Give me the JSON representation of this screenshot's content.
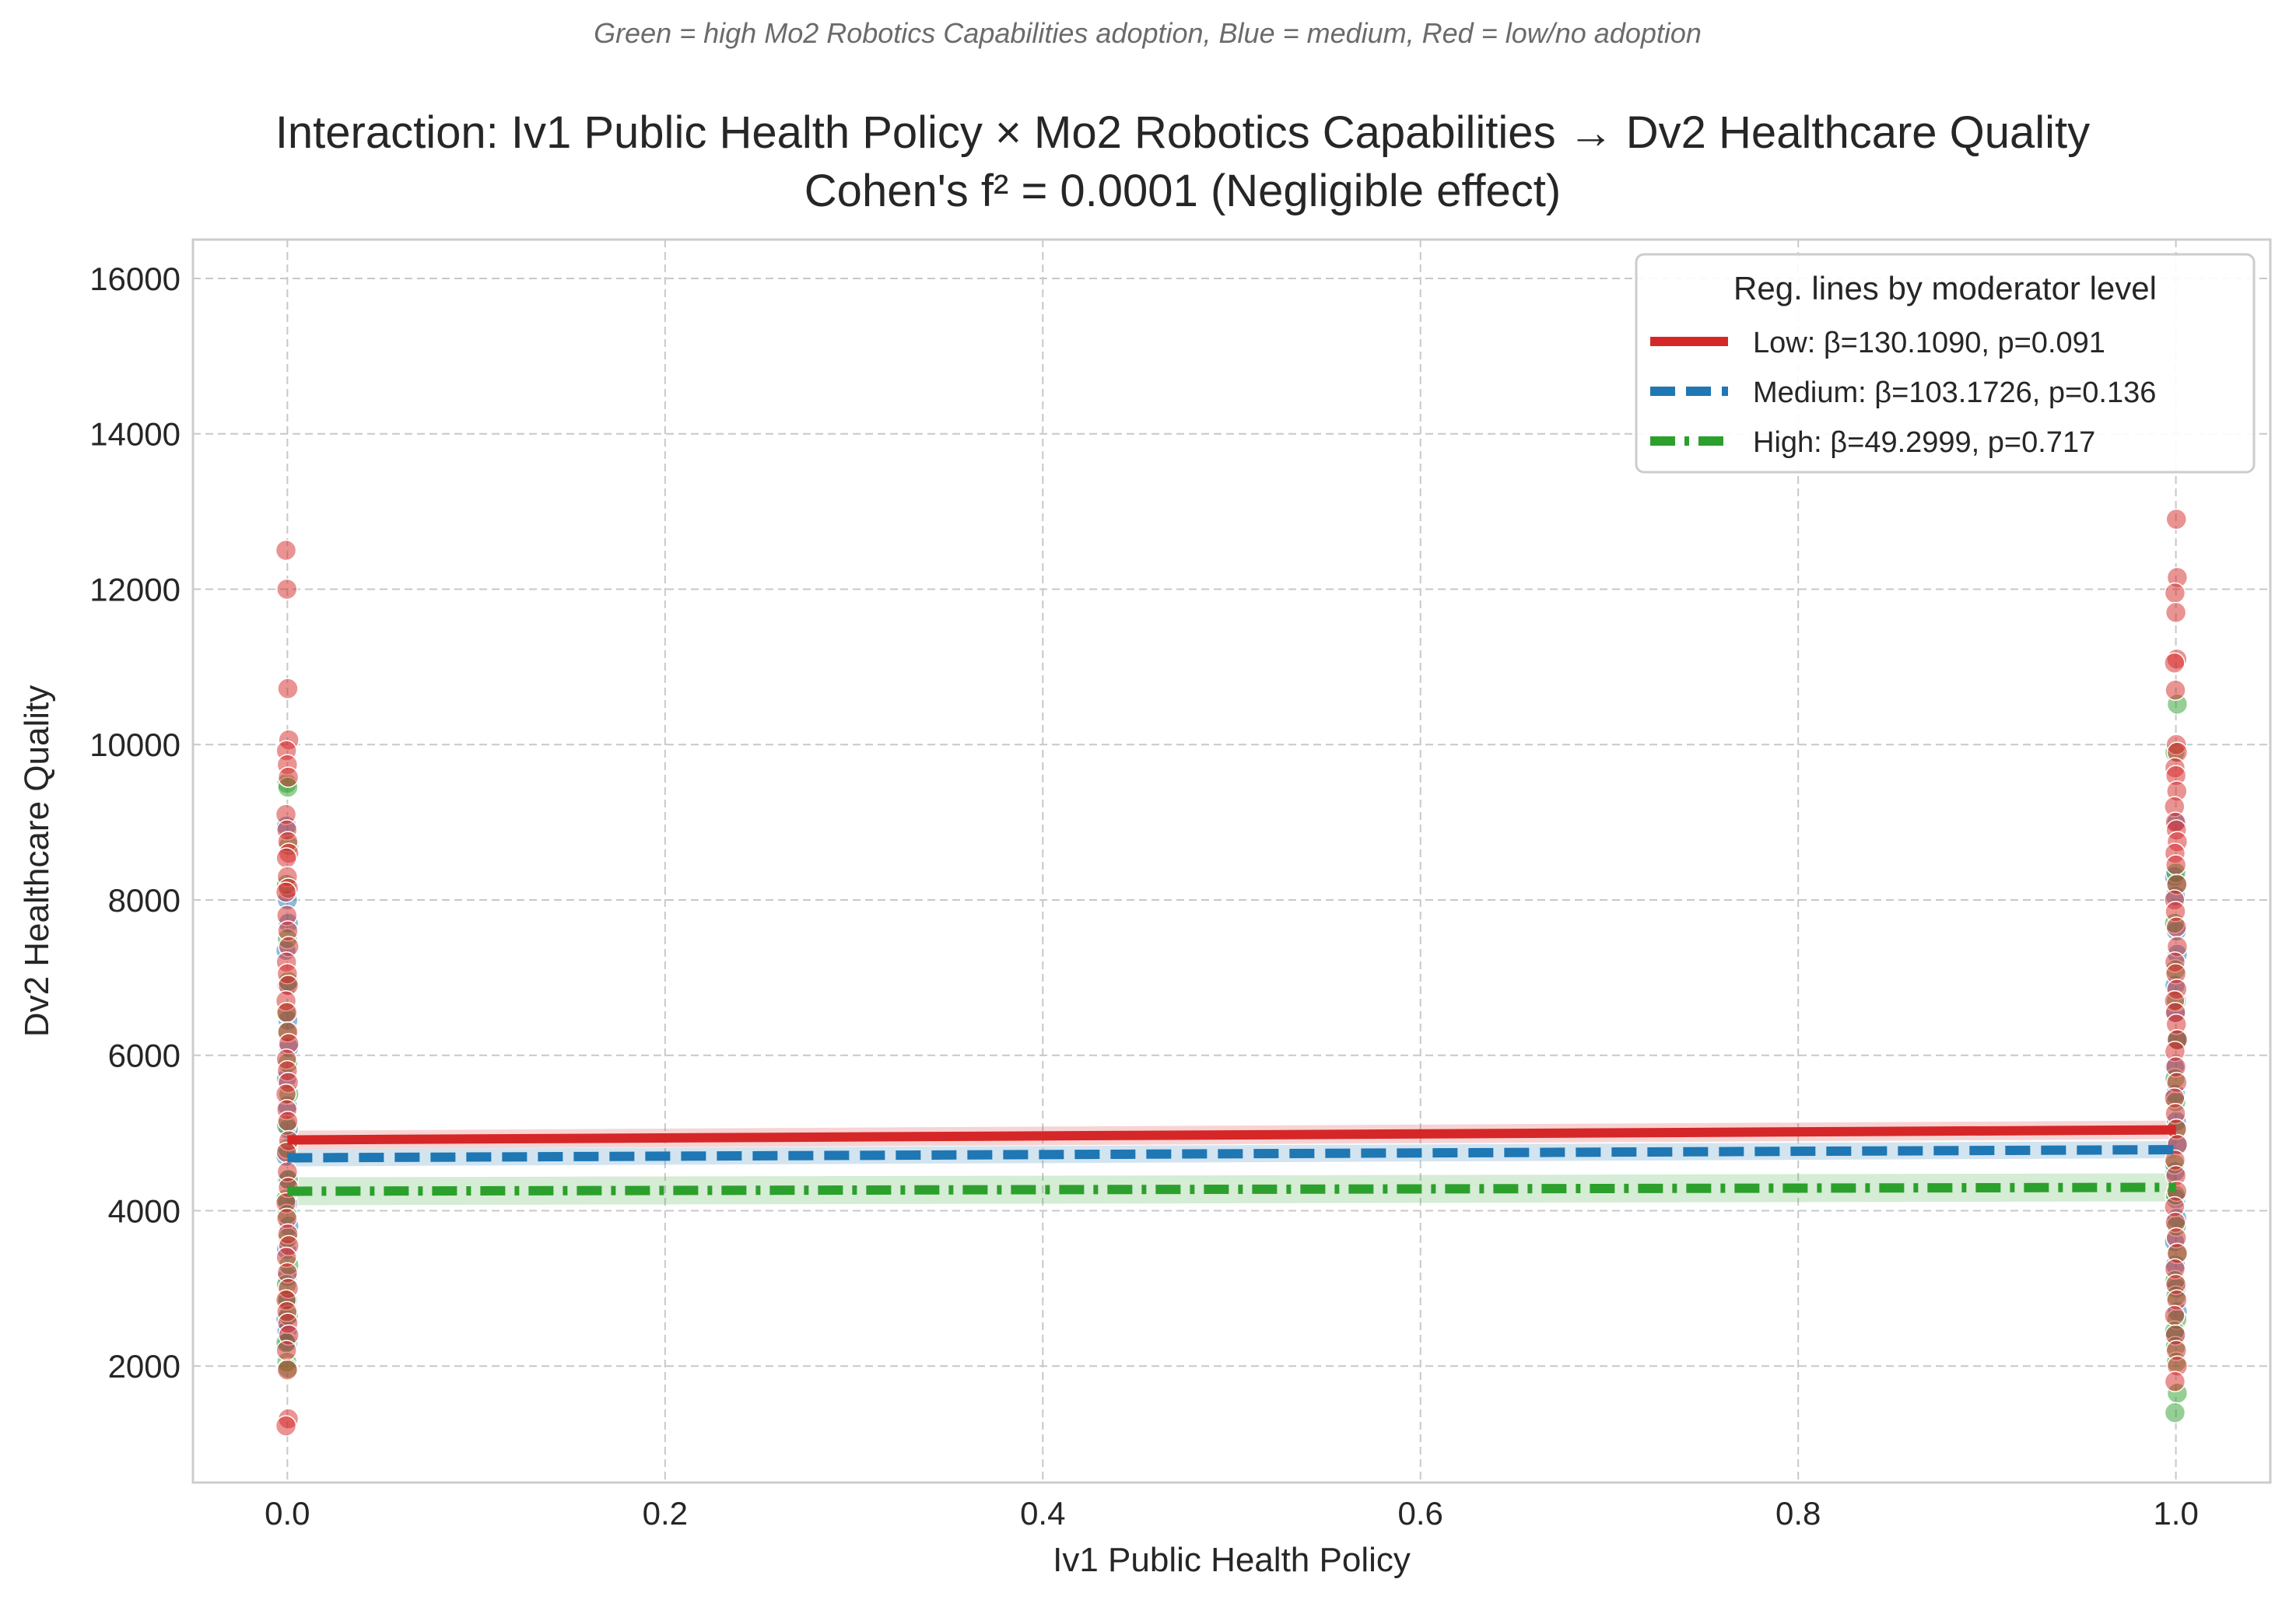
{
  "chart_data": {
    "type": "scatter",
    "caption": "Green = high Mo2 Robotics Capabilities adoption, Blue = medium, Red = low/no adoption",
    "title": "Interaction: Iv1 Public Health Policy × Mo2 Robotics Capabilities → Dv2 Healthcare Quality",
    "subtitle": "Cohen's f² = 0.0001 (Negligible effect)",
    "xlabel": "Iv1 Public Health Policy",
    "ylabel": "Dv2 Healthcare Quality",
    "xlim": [
      -0.05,
      1.05
    ],
    "ylim": [
      500,
      16500
    ],
    "xticks": [
      0.0,
      0.2,
      0.4,
      0.6,
      0.8,
      1.0
    ],
    "xtick_labels": [
      "0.0",
      "0.2",
      "0.4",
      "0.6",
      "0.8",
      "1.0"
    ],
    "yticks": [
      2000,
      4000,
      6000,
      8000,
      10000,
      12000,
      14000,
      16000
    ],
    "ytick_labels": [
      "2000",
      "4000",
      "6000",
      "8000",
      "10000",
      "12000",
      "14000",
      "16000"
    ],
    "grid": true,
    "legend": {
      "title": "Reg. lines by moderator level",
      "position": "top-right",
      "entries": [
        "Low: β=130.1090, p=0.091",
        "Medium: β=103.1726, p=0.136",
        "High: β=49.2999, p=0.717"
      ]
    },
    "colors": {
      "low": "#d62728",
      "medium": "#1f77b4",
      "high": "#2ca02c"
    },
    "regression_lines": [
      {
        "name": "Low",
        "color": "#d62728",
        "style": "solid",
        "x": [
          0,
          1
        ],
        "y": [
          4910,
          5040
        ],
        "ci_halfwidth": 120
      },
      {
        "name": "Medium",
        "color": "#1f77b4",
        "style": "dashed",
        "x": [
          0,
          1
        ],
        "y": [
          4680,
          4785
        ],
        "ci_halfwidth": 110
      },
      {
        "name": "High",
        "color": "#2ca02c",
        "style": "dashdot",
        "x": [
          0,
          1
        ],
        "y": [
          4250,
          4300
        ],
        "ci_halfwidth": 180
      }
    ],
    "series": [
      {
        "name": "Low",
        "color": "#d62728",
        "x": 0,
        "y": [
          12500,
          12000,
          10720,
          10060,
          9920,
          9740,
          9580,
          9100,
          8900,
          8750,
          8600,
          8540,
          8300,
          8150,
          8100,
          7800,
          7600,
          7400,
          7200,
          7050,
          6900,
          6700,
          6550,
          6300,
          6150,
          5950,
          5800,
          5650,
          5500,
          5300,
          5150,
          4900,
          4750,
          4500,
          4300,
          4100,
          3900,
          3700,
          3550,
          3400,
          3200,
          3000,
          2850,
          2700,
          2550,
          2400,
          2200,
          1950,
          1320,
          1230
        ]
      },
      {
        "name": "Low",
        "color": "#d62728",
        "x": 1,
        "y": [
          12900,
          12150,
          11950,
          11700,
          11100,
          11050,
          10700,
          10000,
          9900,
          9700,
          9600,
          9400,
          9200,
          9000,
          8900,
          8750,
          8600,
          8450,
          8200,
          8000,
          7850,
          7650,
          7400,
          7200,
          7050,
          6850,
          6700,
          6550,
          6400,
          6200,
          6050,
          5850,
          5650,
          5450,
          5250,
          5050,
          4850,
          4650,
          4450,
          4250,
          4050,
          3850,
          3650,
          3450,
          3250,
          3050,
          2850,
          2650,
          2400,
          2200,
          2000,
          1800
        ]
      },
      {
        "name": "Medium",
        "color": "#1f77b4",
        "x": 0,
        "y": [
          8950,
          8000,
          7700,
          7350,
          6900,
          6450,
          6100,
          5700,
          5350,
          5050,
          4700,
          4400,
          4100,
          3800,
          3500,
          3150,
          2850,
          2600,
          2450,
          2300
        ]
      },
      {
        "name": "Medium",
        "color": "#1f77b4",
        "x": 1,
        "y": [
          9000,
          8300,
          8050,
          7600,
          7300,
          6900,
          6550,
          6200,
          5850,
          5500,
          5150,
          4850,
          4500,
          4150,
          3900,
          3600,
          3300,
          3000,
          2700,
          2400
        ]
      },
      {
        "name": "High",
        "color": "#2ca02c",
        "x": 0,
        "y": [
          9500,
          9450,
          8700,
          8200,
          7500,
          6950,
          6550,
          6300,
          5900,
          5500,
          5100,
          4800,
          4400,
          4150,
          3950,
          3650,
          3300,
          3050,
          2850,
          2650,
          2300,
          2050,
          1970
        ]
      },
      {
        "name": "High",
        "color": "#2ca02c",
        "x": 1,
        "y": [
          10520,
          9900,
          8350,
          8200,
          7700,
          7100,
          6700,
          6200,
          5700,
          5400,
          5050,
          4600,
          4200,
          3800,
          3450,
          3100,
          2900,
          2600,
          2450,
          2250,
          2050,
          1650,
          1400
        ]
      }
    ]
  }
}
